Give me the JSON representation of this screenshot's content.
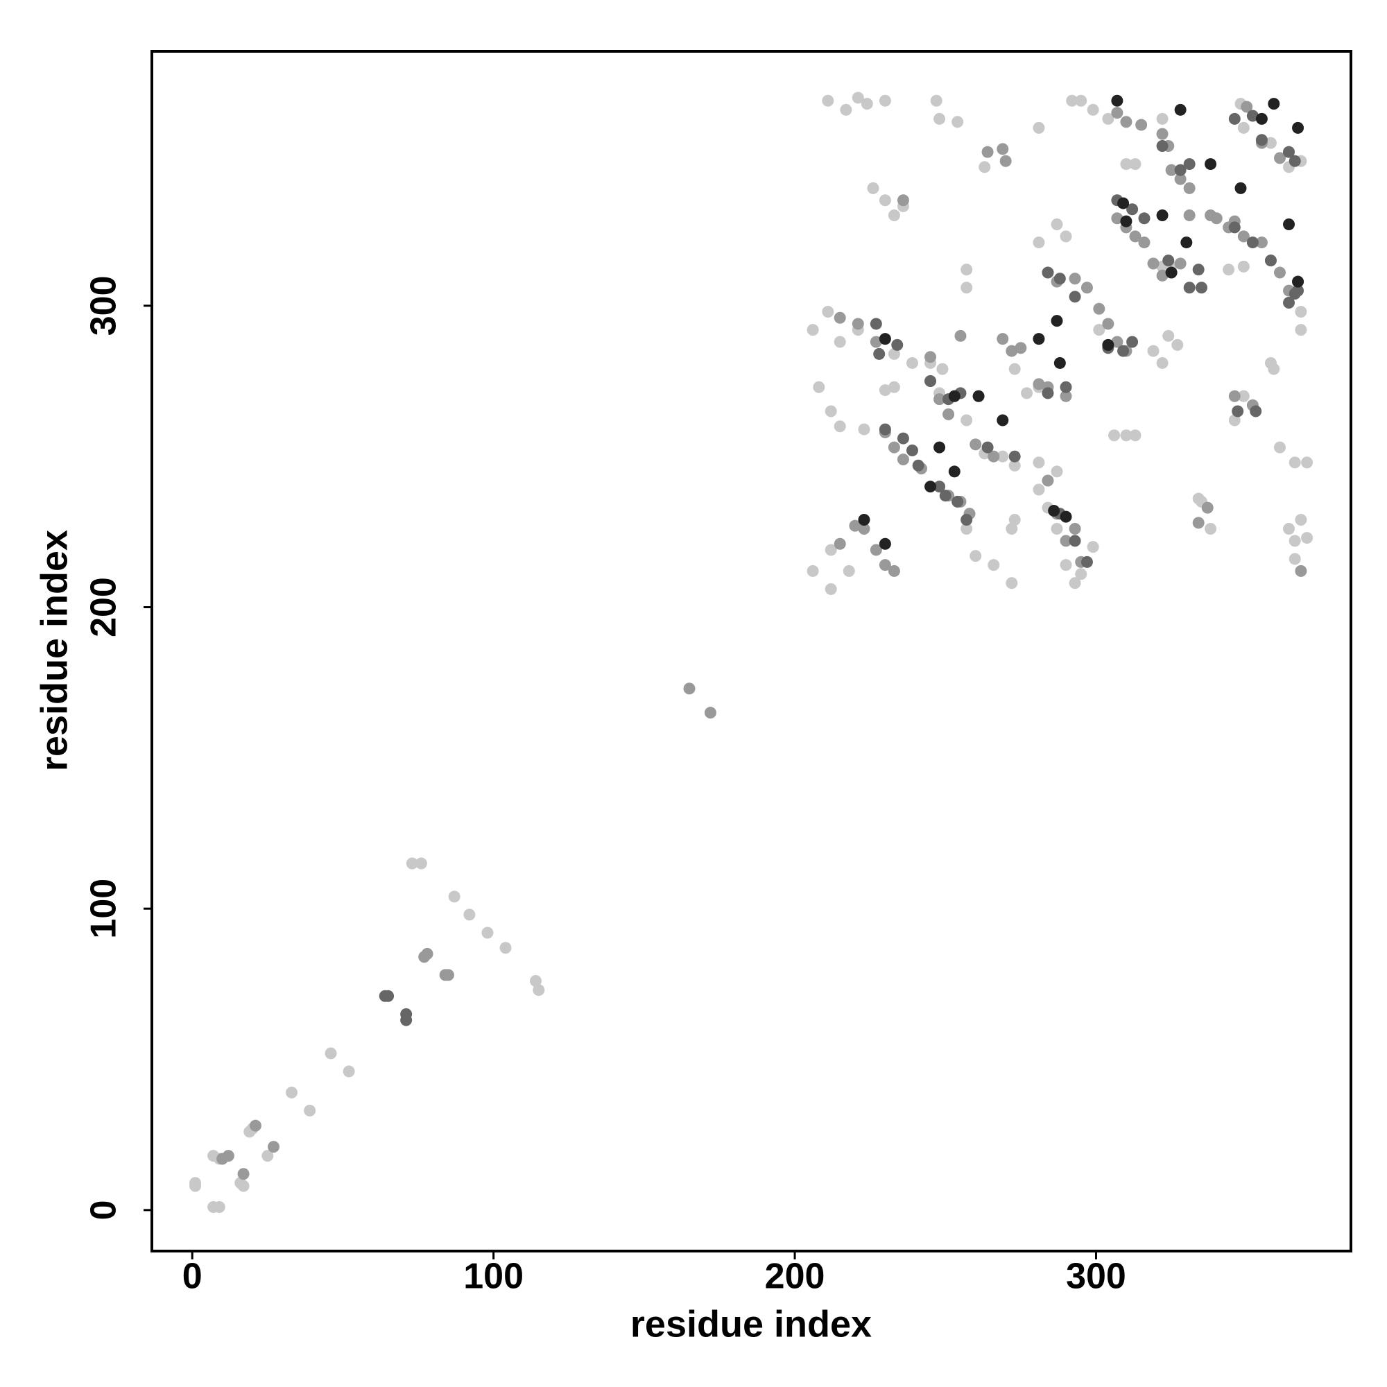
{
  "chart_data": {
    "type": "scatter",
    "xlabel": "residue index",
    "ylabel": "residue index",
    "xlim": [
      -13.4,
      384.6
    ],
    "ylim": [
      -13.6,
      384.4
    ],
    "xticks": [
      0,
      100,
      200,
      300
    ],
    "yticks": [
      0,
      100,
      200,
      300
    ],
    "grid": false,
    "series": [
      {
        "color": "#c8c8c8",
        "x": [
          1,
          1,
          7,
          9,
          7,
          9,
          17,
          16,
          19,
          20,
          25,
          33,
          39,
          46,
          52,
          73,
          76,
          87,
          92,
          98,
          104,
          114,
          115,
          211,
          217,
          221,
          224,
          230,
          247,
          248,
          254,
          281,
          292,
          295,
          299,
          304,
          322,
          348,
          349,
          358,
          368,
          364,
          226,
          230,
          236,
          233,
          263,
          310,
          313,
          281,
          287,
          290,
          257,
          257,
          206,
          211,
          215,
          221,
          233,
          239,
          245,
          249,
          319,
          324,
          327,
          322,
          349,
          344,
          358,
          359,
          306,
          310,
          313,
          208,
          212,
          215,
          223,
          230,
          233,
          248,
          251,
          257,
          263,
          269,
          273,
          281,
          287,
          281,
          284,
          287,
          290,
          293,
          295,
          299,
          260,
          266,
          272,
          272,
          273,
          257,
          206,
          212,
          212,
          218,
          361,
          366,
          370,
          364,
          366,
          370,
          368,
          366,
          346,
          349,
          338,
          335,
          334,
          368,
          368,
          322,
          325,
          364,
          277,
          281,
          273,
          301
        ],
        "values": [
          8,
          9,
          1,
          1,
          18,
          17,
          8,
          9,
          26,
          27,
          18,
          39,
          33,
          52,
          46,
          115,
          115,
          104,
          98,
          92,
          87,
          76,
          73,
          368,
          365,
          369,
          367,
          368,
          368,
          362,
          361,
          359,
          368,
          368,
          365,
          362,
          362,
          367,
          359,
          354,
          348,
          351,
          339,
          335,
          333,
          330,
          346,
          347,
          347,
          321,
          327,
          323,
          312,
          306,
          292,
          298,
          288,
          292,
          284,
          281,
          281,
          279,
          285,
          290,
          287,
          281,
          313,
          312,
          281,
          279,
          257,
          257,
          257,
          273,
          265,
          260,
          259,
          272,
          273,
          271,
          264,
          262,
          251,
          250,
          247,
          248,
          245,
          239,
          233,
          226,
          214,
          208,
          211,
          220,
          217,
          214,
          208,
          226,
          229,
          226,
          212,
          206,
          219,
          212,
          253,
          248,
          248,
          226,
          222,
          223,
          229,
          216,
          262,
          270,
          226,
          235,
          236,
          292,
          298,
          313,
          313,
          346,
          271,
          273,
          279,
          292
        ]
      },
      {
        "color": "#999999",
        "x": [
          10,
          12,
          17,
          21,
          27,
          77,
          78,
          84,
          85,
          165,
          172,
          236,
          264,
          269,
          270,
          307,
          310,
          315,
          322,
          324,
          325,
          328,
          331,
          307,
          310,
          313,
          316,
          319,
          322,
          328,
          331,
          338,
          344,
          349,
          355,
          358,
          361,
          364,
          367,
          350,
          355,
          361,
          284,
          287,
          293,
          297,
          301,
          304,
          307,
          310,
          215,
          221,
          227,
          245,
          245,
          248,
          251,
          255,
          269,
          272,
          275,
          260,
          266,
          230,
          233,
          236,
          242,
          248,
          251,
          255,
          258,
          281,
          284,
          290,
          284,
          287,
          290,
          293,
          295,
          215,
          220,
          223,
          227,
          230,
          233,
          340,
          346,
          346,
          352,
          337,
          334,
          368
        ],
        "values": [
          17,
          18,
          12,
          28,
          21,
          84,
          85,
          78,
          78,
          173,
          165,
          335,
          351,
          352,
          348,
          364,
          361,
          360,
          357,
          353,
          345,
          342,
          339,
          329,
          326,
          323,
          321,
          314,
          310,
          314,
          330,
          330,
          326,
          323,
          321,
          315,
          311,
          305,
          308,
          366,
          354,
          349,
          311,
          308,
          309,
          306,
          299,
          294,
          288,
          285,
          296,
          294,
          288,
          283,
          275,
          269,
          264,
          290,
          289,
          285,
          286,
          254,
          250,
          258,
          253,
          249,
          246,
          240,
          237,
          235,
          231,
          274,
          273,
          270,
          242,
          231,
          222,
          226,
          215,
          221,
          227,
          226,
          219,
          214,
          212,
          329,
          328,
          270,
          267,
          233,
          228,
          212
        ]
      },
      {
        "color": "#666666",
        "x": [
          64,
          65,
          71,
          71,
          227,
          228,
          234,
          230,
          236,
          239,
          241,
          248,
          250,
          254,
          257,
          245,
          251,
          255,
          264,
          273,
          284,
          288,
          293,
          304,
          309,
          312,
          284,
          290,
          288,
          293,
          297,
          322,
          328,
          331,
          307,
          312,
          316,
          324,
          325,
          331,
          334,
          335,
          346,
          352,
          358,
          366,
          364,
          346,
          352,
          355,
          364,
          347,
          353,
          367,
          366
        ],
        "values": [
          71,
          71,
          65,
          63,
          294,
          284,
          287,
          259,
          256,
          252,
          247,
          240,
          237,
          235,
          229,
          275,
          269,
          271,
          253,
          250,
          311,
          309,
          303,
          286,
          285,
          288,
          271,
          273,
          231,
          222,
          215,
          353,
          345,
          347,
          335,
          332,
          329,
          315,
          311,
          306,
          312,
          306,
          326,
          321,
          315,
          304,
          301,
          362,
          363,
          355,
          351,
          265,
          265,
          305,
          348
        ]
      },
      {
        "color": "#222222",
        "x": [
          230,
          245,
          248,
          253,
          261,
          269,
          281,
          287,
          288,
          286,
          290,
          230,
          223,
          307,
          309,
          310,
          322,
          325,
          330,
          338,
          348,
          359,
          367,
          367,
          364,
          355,
          304,
          328,
          253
        ],
        "values": [
          289,
          240,
          253,
          245,
          270,
          262,
          289,
          295,
          281,
          232,
          230,
          221,
          229,
          368,
          334,
          328,
          330,
          311,
          321,
          347,
          339,
          367,
          359,
          308,
          327,
          362,
          287,
          365,
          270
        ]
      }
    ]
  }
}
